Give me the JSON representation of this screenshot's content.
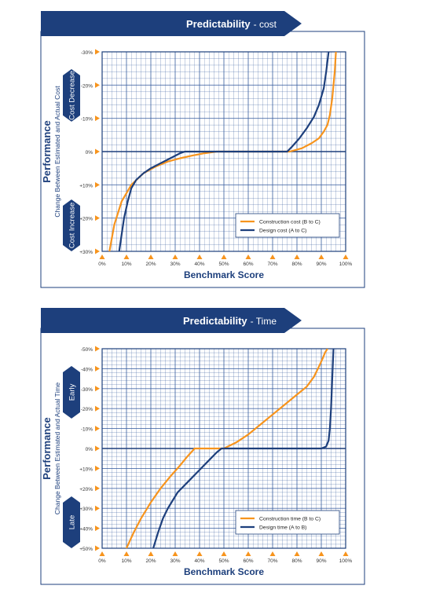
{
  "chart_data": [
    {
      "type": "line",
      "title_main": "Predictability",
      "title_sub": "- cost",
      "ylabel_main": "Performance",
      "ylabel_sub": "Change Between Estimated and Actual Cost",
      "xlabel": "Benchmark Score",
      "y_band_top": "Cost Decrease",
      "y_band_bottom": "Cost Increase",
      "xlim": [
        0,
        100
      ],
      "ylim": [
        -30,
        30
      ],
      "grid": true,
      "legend_position": "bottom-right",
      "x_ticks": [
        0,
        10,
        20,
        30,
        40,
        50,
        60,
        70,
        80,
        90,
        100
      ],
      "x_tick_labels": [
        "0%",
        "10%",
        "20%",
        "30%",
        "40%",
        "50%",
        "60%",
        "70%",
        "80%",
        "90%",
        "100%"
      ],
      "y_ticks": [
        -30,
        -20,
        -10,
        0,
        10,
        20,
        30
      ],
      "y_tick_labels": [
        "-30%",
        "-20%",
        "-10%",
        "0%",
        "+10%",
        "+20%",
        "+30%"
      ],
      "series": [
        {
          "name": "Construction cost (B to C)",
          "color": "#f7941d",
          "x": [
            3,
            5,
            8,
            12,
            17,
            22,
            27,
            32,
            37,
            42,
            47,
            52,
            57,
            62,
            67,
            72,
            77,
            82,
            86,
            89,
            91,
            92.5,
            93.5,
            94.5,
            95.5,
            96
          ],
          "y": [
            30,
            22,
            15,
            10,
            6.5,
            4.5,
            3,
            2,
            1.2,
            0.5,
            0,
            0,
            0,
            0,
            0,
            0,
            0,
            -1,
            -2.5,
            -4,
            -6,
            -8,
            -11,
            -16,
            -24,
            -30
          ]
        },
        {
          "name": "Design cost (A to C)",
          "color": "#1d3f7c",
          "x": [
            7,
            8,
            9,
            10.5,
            12,
            14,
            17,
            20,
            24,
            28,
            32,
            34,
            36,
            40,
            50,
            60,
            70,
            76,
            78,
            81,
            84,
            87,
            89,
            91,
            92,
            93
          ],
          "y": [
            30,
            25,
            20,
            15,
            11,
            8.5,
            6.5,
            5,
            3.5,
            2,
            0.5,
            0,
            0,
            0,
            0,
            0,
            0,
            0,
            -1.5,
            -4,
            -7,
            -10.5,
            -14,
            -19,
            -24,
            -30
          ]
        }
      ]
    },
    {
      "type": "line",
      "title_main": "Predictability",
      "title_sub": "- Time",
      "ylabel_main": "Performance",
      "ylabel_sub": "Change Between Estimated and Actual Time",
      "xlabel": "Benchmark Score",
      "y_band_top": "Early",
      "y_band_bottom": "Late",
      "xlim": [
        0,
        100
      ],
      "ylim": [
        -50,
        50
      ],
      "grid": true,
      "legend_position": "bottom-right",
      "x_ticks": [
        0,
        10,
        20,
        30,
        40,
        50,
        60,
        70,
        80,
        90,
        100
      ],
      "x_tick_labels": [
        "0%",
        "10%",
        "20%",
        "30%",
        "40%",
        "50%",
        "60%",
        "70%",
        "80%",
        "90%",
        "100%"
      ],
      "y_ticks": [
        -50,
        -40,
        -30,
        -20,
        -10,
        0,
        10,
        20,
        30,
        40,
        50
      ],
      "y_tick_labels": [
        "-50%",
        "-40%",
        "-30%",
        "-20%",
        "-10%",
        "0%",
        "+10%",
        "+20%",
        "+30%",
        "+40%",
        "+50%"
      ],
      "series": [
        {
          "name": "Construction time (B to C)",
          "color": "#f7941d",
          "x": [
            10,
            13,
            16,
            20,
            24,
            28,
            32,
            35,
            38,
            42,
            46,
            50,
            55,
            60,
            65,
            70,
            75,
            80,
            84,
            87,
            89,
            90.5,
            91.5,
            92.5
          ],
          "y": [
            50,
            42,
            35,
            27,
            20,
            14,
            8.5,
            4,
            0,
            0,
            0,
            0,
            -3,
            -7,
            -12,
            -17,
            -22,
            -27,
            -31,
            -36,
            -41,
            -45,
            -48,
            -50
          ],
          "min_x": 10
        },
        {
          "name": "Design time (A to B)",
          "color": "#1d3f7c",
          "x": [
            21,
            23,
            25,
            27,
            29,
            31,
            35,
            39,
            43,
            47,
            49,
            51,
            53,
            60,
            70,
            80,
            90,
            92,
            93,
            93.5,
            94,
            94.5,
            95
          ],
          "y": [
            50,
            42,
            35,
            30,
            26,
            22,
            17,
            12,
            7,
            2,
            0,
            0,
            0,
            0,
            0,
            0,
            0,
            -1,
            -4,
            -10,
            -20,
            -35,
            -50
          ]
        }
      ]
    }
  ]
}
